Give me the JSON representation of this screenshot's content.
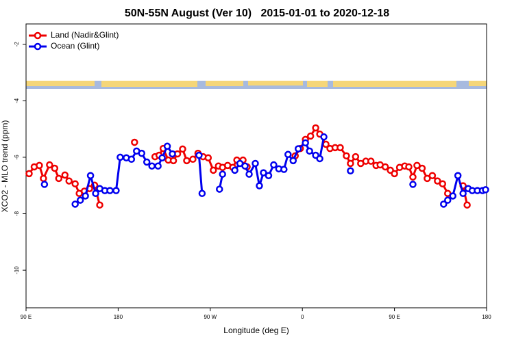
{
  "chart_data": {
    "type": "line",
    "title": "50N-55N August (Ver 10)   2015-01-01 to 2020-12-18",
    "xlabel": "Longitude (deg E)",
    "ylabel": "XCO2 - MLO trend (ppm)",
    "xlim": [
      90,
      540
    ],
    "xticks": [
      {
        "value": 90,
        "label": "90 E"
      },
      180,
      {
        "value": 270,
        "label": "90 W"
      },
      {
        "value": 360,
        "label": "0"
      },
      {
        "value": 450,
        "label": "90 E"
      },
      {
        "value": 540,
        "label": "180"
      }
    ],
    "ylim": [
      -11.33,
      -1.28
    ],
    "yticks": [
      -10,
      -8,
      -6,
      -4,
      -2
    ],
    "legend": "upper left",
    "series": [
      {
        "name": "Land (Nadir&Glint)",
        "color": "#ee0000",
        "x": [
          93,
          98,
          103,
          107,
          113,
          118,
          122,
          128,
          132,
          138,
          142,
          147,
          152,
          157,
          162,
          null,
          196,
          null,
          216,
          220,
          224,
          229,
          234,
          238,
          243,
          247,
          253,
          258,
          263,
          268,
          273,
          278,
          282,
          287,
          292,
          296,
          302,
          306,
          null,
          353,
          358,
          363,
          368,
          373,
          377,
          383,
          387,
          392,
          397,
          403,
          407,
          412,
          417,
          422,
          427,
          432,
          436,
          441,
          446,
          450,
          455,
          460,
          464,
          468,
          472,
          477,
          482,
          487,
          492,
          497,
          502,
          null,
          517,
          521
        ],
        "values": [
          -6.58,
          -6.34,
          -6.29,
          -6.75,
          -6.27,
          -6.39,
          -6.75,
          -6.63,
          -6.84,
          -6.94,
          -7.28,
          -7.2,
          -7.11,
          -6.99,
          -7.69,
          null,
          -5.47,
          null,
          -5.98,
          -5.93,
          -5.69,
          -6.1,
          -6.12,
          -5.88,
          -5.71,
          -6.12,
          -6.07,
          -5.86,
          -5.98,
          -6.02,
          -6.46,
          -6.31,
          -6.36,
          -6.29,
          -6.36,
          -6.1,
          -6.1,
          -6.34,
          null,
          -5.95,
          -5.69,
          -5.37,
          -5.25,
          -4.96,
          -5.18,
          -5.54,
          -5.69,
          -5.66,
          -5.66,
          -5.95,
          -6.22,
          -5.98,
          -6.22,
          -6.14,
          -6.14,
          -6.29,
          -6.27,
          -6.34,
          -6.46,
          -6.58,
          -6.36,
          -6.31,
          -6.34,
          -6.7,
          -6.29,
          -6.39,
          -6.75,
          -6.65,
          -6.84,
          -6.94,
          -7.28,
          null,
          -7.01,
          -7.69
        ]
      },
      {
        "name": "Ocean (Glint)",
        "color": "#0000ee",
        "x": [
          108,
          null,
          138,
          143,
          148,
          153,
          158,
          162,
          167,
          172,
          178,
          182,
          188,
          193,
          198,
          203,
          208,
          213,
          219,
          223,
          228,
          233,
          null,
          259,
          262,
          null,
          279,
          282,
          null,
          294,
          299,
          304,
          308,
          314,
          318,
          322,
          327,
          332,
          337,
          342,
          346,
          351,
          356,
          363,
          367,
          373,
          377,
          381,
          null,
          407,
          null,
          468,
          null,
          498,
          502,
          507,
          512,
          517,
          522,
          526,
          531,
          536,
          539
        ],
        "values": [
          -6.96,
          null,
          -7.66,
          -7.52,
          -7.37,
          -6.65,
          -7.28,
          -7.11,
          -7.18,
          -7.18,
          -7.18,
          -6.0,
          -6.02,
          -6.07,
          -5.78,
          -5.86,
          -6.17,
          -6.31,
          -6.31,
          -6.02,
          -5.61,
          -5.88,
          null,
          -5.93,
          -7.28,
          null,
          -7.13,
          -6.6,
          null,
          -6.46,
          -6.22,
          -6.31,
          -6.6,
          -6.22,
          -7.01,
          -6.55,
          -6.65,
          -6.27,
          -6.41,
          -6.43,
          -5.9,
          -6.12,
          -5.7,
          -5.49,
          -5.78,
          -5.93,
          -6.05,
          -5.28,
          null,
          -6.48,
          null,
          -6.96,
          null,
          -7.66,
          -7.52,
          -7.37,
          -6.65,
          -7.28,
          -7.11,
          -7.18,
          -7.18,
          -7.18,
          -7.15
        ]
      }
    ]
  }
}
